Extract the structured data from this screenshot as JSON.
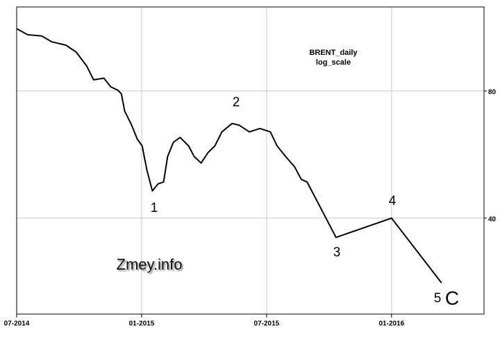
{
  "chart_data": {
    "type": "line",
    "annotations": [
      "BRENT_daily",
      "log_scale",
      "1",
      "2",
      "3",
      "4",
      "5",
      "C",
      "Zmey.info"
    ],
    "x": [
      2014.5,
      2014.544,
      2014.6,
      2014.641,
      2014.697,
      2014.738,
      2014.78,
      2014.808,
      2014.849,
      2014.877,
      2014.905,
      2014.919,
      2014.932,
      2014.96,
      2014.982,
      2015.002,
      2015.021,
      2015.043,
      2015.066,
      2015.088,
      2015.104,
      2015.127,
      2015.154,
      2015.188,
      2015.21,
      2015.238,
      2015.265,
      2015.293,
      2015.321,
      2015.362,
      2015.39,
      2015.431,
      2015.473,
      2015.515,
      2015.542,
      2015.576,
      2015.612,
      2015.639,
      2015.662,
      2015.778,
      2016.0,
      2016.2
    ],
    "series": [
      {
        "color": "#000000",
        "values": [
          112.4,
          108.7,
          108,
          104.6,
          102.7,
          98.9,
          91.7,
          85,
          85.8,
          81.8,
          80.3,
          78.8,
          71.7,
          66.4,
          61.6,
          59.3,
          52,
          46.4,
          48.2,
          48.7,
          56,
          60.5,
          62.1,
          59.3,
          56,
          54,
          57.1,
          59.3,
          64,
          67,
          66.4,
          64,
          65.2,
          64,
          59.3,
          56,
          52.9,
          49.4,
          48.7,
          36,
          40,
          28.1
        ]
      }
    ],
    "xlim": [
      2014.5,
      2016.37
    ],
    "xticks": [
      {
        "value": 2014.5,
        "label": "07-2014"
      },
      {
        "value": 2015.0,
        "label": "01-2015"
      },
      {
        "value": 2015.5,
        "label": "07-2015"
      },
      {
        "value": 2016.0,
        "label": "01-2016"
      }
    ],
    "ylim": [
      23.7,
      126.5
    ],
    "yticks": [
      40,
      80
    ],
    "yscale": "log",
    "grid": true
  }
}
